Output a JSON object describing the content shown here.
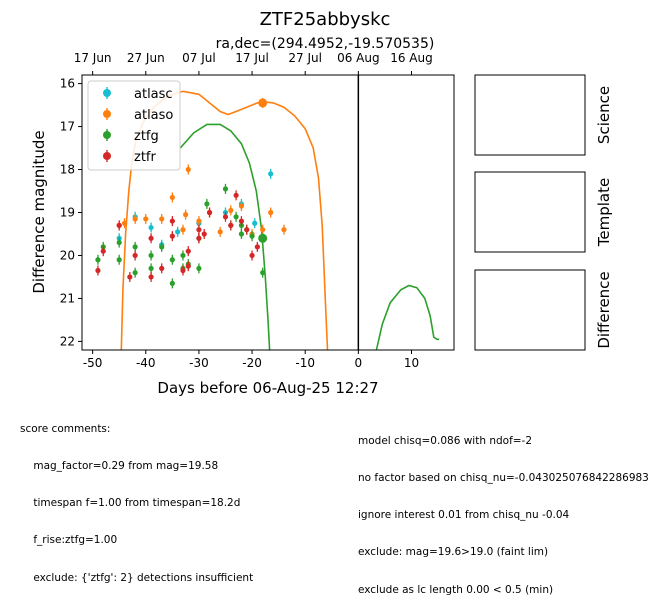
{
  "title": "ZTF25abbyskc",
  "subtitle": "ra,dec=(294.4952,-19.570535)",
  "colors": {
    "atlasc": "#17becf",
    "atlaso": "#ff7f0e",
    "ztfg": "#2ca02c",
    "ztfr": "#d62728"
  },
  "chart_data": {
    "type": "scatter",
    "xlabel": "Days before 06-Aug-25 12:27",
    "ylabel": "Difference magnitude",
    "xlim": [
      -52,
      18
    ],
    "ylim": [
      22.2,
      15.8
    ],
    "y_inverted": true,
    "xticks": [
      -50,
      -40,
      -30,
      -20,
      -10,
      0,
      10
    ],
    "yticks": [
      16,
      17,
      18,
      19,
      20,
      21,
      22
    ],
    "top_axis_ticks": [
      {
        "x": -50,
        "label": "17 Jun"
      },
      {
        "x": -40,
        "label": "27 Jun"
      },
      {
        "x": -30,
        "label": "07 Jul"
      },
      {
        "x": -20,
        "label": "17 Jul"
      },
      {
        "x": -10,
        "label": "27 Jul"
      },
      {
        "x": 0,
        "label": "06 Aug"
      },
      {
        "x": 10,
        "label": "16 Aug"
      }
    ],
    "vline_x": 0,
    "legend_position": "top-left",
    "series": [
      {
        "name": "atlasc",
        "color_key": "atlasc",
        "points": [
          [
            -45,
            19.6
          ],
          [
            -42,
            19.1
          ],
          [
            -39,
            19.35
          ],
          [
            -37,
            19.75
          ],
          [
            -34,
            19.45
          ],
          [
            -30,
            19.25
          ],
          [
            -25,
            19.0
          ],
          [
            -22,
            18.8
          ],
          [
            -19.5,
            19.25
          ],
          [
            -16.5,
            18.1
          ]
        ]
      },
      {
        "name": "atlaso",
        "color_key": "atlaso",
        "points": [
          [
            -45,
            19.3
          ],
          [
            -44,
            19.25
          ],
          [
            -42,
            19.15
          ],
          [
            -40,
            19.15
          ],
          [
            -37,
            19.15
          ],
          [
            -35,
            18.65
          ],
          [
            -33,
            19.4
          ],
          [
            -32.5,
            19.05
          ],
          [
            -32,
            18.0
          ],
          [
            -30,
            19.2
          ],
          [
            -28,
            19.0
          ],
          [
            -26,
            19.45
          ],
          [
            -24,
            18.95
          ],
          [
            -22,
            18.85
          ],
          [
            -20,
            19.5
          ],
          [
            -18,
            19.4
          ],
          [
            -16.5,
            19.0
          ],
          [
            -14,
            19.4
          ],
          [
            -18,
            16.45
          ]
        ]
      },
      {
        "name": "ztfg",
        "color_key": "ztfg",
        "points": [
          [
            -49,
            20.1
          ],
          [
            -48,
            19.8
          ],
          [
            -45,
            19.7
          ],
          [
            -45,
            20.1
          ],
          [
            -42,
            20.4
          ],
          [
            -42,
            19.8
          ],
          [
            -39,
            20.0
          ],
          [
            -39,
            20.3
          ],
          [
            -37,
            19.8
          ],
          [
            -35,
            20.65
          ],
          [
            -35,
            20.1
          ],
          [
            -33,
            20.3
          ],
          [
            -33,
            20.0
          ],
          [
            -32,
            20.2
          ],
          [
            -30,
            20.3
          ],
          [
            -30,
            19.6
          ],
          [
            -28.5,
            18.8
          ],
          [
            -25,
            18.45
          ],
          [
            -24,
            19.3
          ],
          [
            -23,
            19.1
          ],
          [
            -22,
            19.3
          ],
          [
            -22,
            19.5
          ],
          [
            -21,
            19.4
          ],
          [
            -20,
            19.55
          ],
          [
            -18,
            19.6
          ],
          [
            -18,
            20.4
          ]
        ]
      },
      {
        "name": "ztfr",
        "color_key": "ztfr",
        "points": [
          [
            -49,
            20.35
          ],
          [
            -48,
            19.9
          ],
          [
            -45,
            19.3
          ],
          [
            -43,
            20.5
          ],
          [
            -42,
            20.0
          ],
          [
            -39,
            20.5
          ],
          [
            -39,
            19.6
          ],
          [
            -37,
            20.3
          ],
          [
            -35,
            19.2
          ],
          [
            -35,
            19.55
          ],
          [
            -33,
            20.35
          ],
          [
            -32,
            19.9
          ],
          [
            -32,
            20.25
          ],
          [
            -30,
            19.4
          ],
          [
            -30,
            19.6
          ],
          [
            -29,
            19.5
          ],
          [
            -28,
            19.0
          ],
          [
            -25,
            19.1
          ],
          [
            -24,
            19.3
          ],
          [
            -23,
            18.6
          ],
          [
            -22,
            19.2
          ],
          [
            -21,
            19.4
          ],
          [
            -20,
            20.0
          ],
          [
            -19,
            19.8
          ]
        ]
      }
    ],
    "model_curves": [
      {
        "series": "atlaso",
        "color_key": "atlaso",
        "points": [
          [
            -44.6,
            22.2
          ],
          [
            -44.3,
            20.8
          ],
          [
            -43.8,
            19.5
          ],
          [
            -43.2,
            18.5
          ],
          [
            -42.6,
            17.8
          ],
          [
            -41.8,
            17.3
          ],
          [
            -40.5,
            16.9
          ],
          [
            -38.5,
            16.55
          ],
          [
            -36,
            16.3
          ],
          [
            -33,
            16.18
          ],
          [
            -30,
            16.25
          ],
          [
            -28,
            16.45
          ],
          [
            -26,
            16.65
          ],
          [
            -24.5,
            16.72
          ],
          [
            -23,
            16.65
          ],
          [
            -21,
            16.55
          ],
          [
            -19,
            16.45
          ],
          [
            -17.5,
            16.43
          ],
          [
            -16,
            16.45
          ],
          [
            -14,
            16.55
          ],
          [
            -12,
            16.75
          ],
          [
            -10,
            17.05
          ],
          [
            -8.5,
            17.5
          ],
          [
            -7.5,
            18.2
          ],
          [
            -6.8,
            19.3
          ],
          [
            -6.3,
            20.8
          ],
          [
            -5.8,
            22.2
          ]
        ]
      },
      {
        "series": "ztfg",
        "color_key": "ztfg",
        "points": [
          [
            -33.5,
            17.5
          ],
          [
            -31,
            17.15
          ],
          [
            -28.5,
            16.95
          ],
          [
            -26,
            16.95
          ],
          [
            -24,
            17.1
          ],
          [
            -22,
            17.4
          ],
          [
            -20.5,
            17.85
          ],
          [
            -19.2,
            18.5
          ],
          [
            -18.2,
            19.4
          ],
          [
            -17.5,
            20.5
          ],
          [
            -17,
            21.5
          ],
          [
            -16.7,
            22.2
          ]
        ]
      },
      {
        "series": "ztfg",
        "color_key": "ztfg",
        "points": [
          [
            3.4,
            22.2
          ],
          [
            4.5,
            21.6
          ],
          [
            6,
            21.1
          ],
          [
            8,
            20.8
          ],
          [
            9.5,
            20.7
          ],
          [
            11,
            20.75
          ],
          [
            12.5,
            21.0
          ],
          [
            13.5,
            21.4
          ],
          [
            14.2,
            21.9
          ],
          [
            14.8,
            21.95
          ],
          [
            15.2,
            21.95
          ]
        ]
      }
    ]
  },
  "side_panels": [
    "Science",
    "Template",
    "Difference"
  ],
  "comments": {
    "left": [
      "score comments:",
      "    mag_factor=0.29 from mag=19.58",
      "    timespan f=1.00 from timespan=18.2d",
      "    f_rise:ztfg=1.00",
      "    exclude: {'ztfg': 2} detections insufficient"
    ],
    "right": [
      "model chisq=0.086 with ndof=-2",
      "no factor based on chisq_nu=-0.043025076842286983",
      "ignore interest 0.01 from chisq_nu -0.04",
      "exclude: mag=19.6>19.0 (faint lim)",
      "exclude as lc length 0.00 < 0.5 (min)"
    ]
  }
}
